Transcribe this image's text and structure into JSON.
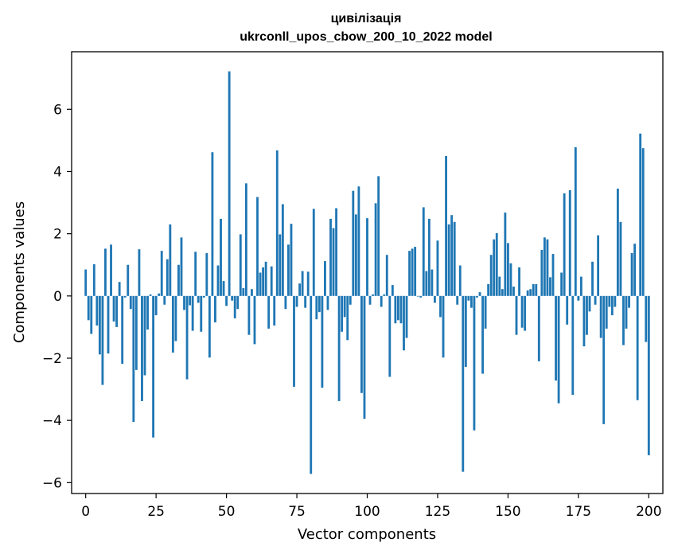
{
  "chart_data": {
    "type": "bar",
    "title": "цивілізація",
    "subtitle": "ukrconll_upos_cbow_200_10_2022 model",
    "xlabel": "Vector components",
    "ylabel": "Components values",
    "xlim": [
      -5,
      205
    ],
    "ylim": [
      -6.35,
      7.85
    ],
    "xticks": [
      0,
      25,
      50,
      75,
      100,
      125,
      150,
      175,
      200
    ],
    "xtick_labels": [
      "0",
      "25",
      "50",
      "75",
      "100",
      "125",
      "150",
      "175",
      "200"
    ],
    "yticks": [
      -6,
      -4,
      -2,
      0,
      2,
      4,
      6
    ],
    "ytick_labels": [
      "−6",
      "−4",
      "−2",
      "0",
      "2",
      "4",
      "6"
    ],
    "bar_color": "#1f77b4",
    "values": [
      0.85,
      -0.78,
      -1.22,
      1.02,
      -0.95,
      -1.88,
      -2.86,
      1.52,
      -1.85,
      1.65,
      -0.82,
      -1.0,
      0.45,
      -2.18,
      -0.05,
      1.0,
      -0.42,
      -4.05,
      -2.38,
      1.5,
      -3.38,
      -2.55,
      -1.08,
      0.05,
      -4.55,
      -0.62,
      0.08,
      1.45,
      -0.28,
      1.18,
      2.3,
      -1.82,
      -1.45,
      1.0,
      1.88,
      -0.45,
      -2.68,
      -0.3,
      -1.12,
      1.42,
      -0.22,
      -1.15,
      -0.05,
      1.38,
      -1.98,
      4.62,
      -0.85,
      0.98,
      2.48,
      0.48,
      -0.32,
      7.22,
      -0.15,
      -0.72,
      -0.42,
      1.98,
      0.25,
      3.62,
      -1.25,
      0.22,
      -1.55,
      3.18,
      0.75,
      0.92,
      1.1,
      -1.05,
      0.95,
      -0.95,
      4.68,
      1.98,
      2.95,
      -0.42,
      1.65,
      2.32,
      -2.92,
      -0.35,
      0.4,
      0.8,
      -0.38,
      0.78,
      -5.72,
      2.8,
      -0.75,
      -0.52,
      -2.95,
      1.12,
      -0.45,
      2.48,
      2.18,
      2.82,
      -3.38,
      -1.15,
      -0.68,
      -1.42,
      -0.28,
      3.38,
      2.62,
      3.52,
      -3.12,
      -3.95,
      2.5,
      -0.28,
      0.05,
      2.98,
      3.85,
      -0.35,
      0.05,
      1.32,
      -2.6,
      0.35,
      -0.88,
      -0.78,
      -0.88,
      -1.75,
      -1.35,
      1.45,
      1.52,
      1.58,
      -0.02,
      -0.05,
      2.85,
      0.8,
      2.48,
      0.85,
      -0.22,
      1.78,
      -0.68,
      -1.98,
      4.5,
      2.3,
      2.6,
      2.38,
      -0.28,
      0.98,
      -5.65,
      -2.28,
      -0.15,
      -0.38,
      -4.32,
      -0.05,
      0.12,
      -2.5,
      -1.05,
      0.38,
      1.32,
      1.82,
      2.02,
      0.62,
      0.22,
      2.68,
      1.7,
      1.05,
      0.3,
      -1.25,
      0.92,
      -1.02,
      -1.12,
      0.18,
      0.22,
      0.38,
      0.38,
      -2.1,
      1.48,
      1.88,
      1.82,
      0.6,
      1.35,
      -2.72,
      -3.45,
      0.75,
      3.3,
      -0.92,
      3.4,
      -3.18,
      4.78,
      -0.15,
      0.62,
      -1.62,
      -1.25,
      -0.5,
      1.1,
      -0.28,
      1.95,
      -1.35,
      -4.12,
      -1.05,
      -0.35,
      -0.62,
      -0.35,
      3.45,
      2.38,
      -1.58,
      -1.05,
      -0.38,
      1.38,
      1.68,
      -3.35,
      5.22,
      4.75,
      -1.48,
      -5.12
    ]
  }
}
